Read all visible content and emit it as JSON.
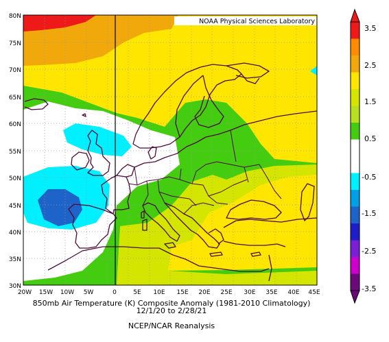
{
  "map": {
    "attribution": "NOAA Physical Sciences Laboratory",
    "lat_labels": [
      "80N",
      "75N",
      "70N",
      "65N",
      "60N",
      "55N",
      "50N",
      "45N",
      "40N",
      "35N",
      "30N"
    ],
    "lon_labels": [
      "20W",
      "15W",
      "10W",
      "5W",
      "0",
      "5E",
      "10E",
      "15E",
      "20E",
      "25E",
      "30E",
      "35E",
      "40E",
      "45E"
    ],
    "colors": {
      "coast": "#4a0a3a",
      "grid": "#9a9a9a",
      "greenwich": "#000000"
    }
  },
  "legend": {
    "labels": [
      "3.5",
      "2.5",
      "1.5",
      "0.5",
      "-0.5",
      "-1.5",
      "-2.5",
      "-3.5"
    ],
    "bins": [
      {
        "color": "#ee1a1a"
      },
      {
        "color": "#ff8c00"
      },
      {
        "color": "#f0a80a"
      },
      {
        "color": "#ffe600"
      },
      {
        "color": "#d4e600"
      },
      {
        "color": "#b8e020"
      },
      {
        "color": "#44cc10"
      },
      {
        "color": "#ffffff"
      },
      {
        "color": "#ffffff"
      },
      {
        "color": "#00f0ff"
      },
      {
        "color": "#00a0e8"
      },
      {
        "color": "#1e64c8"
      },
      {
        "color": "#1e1ec8"
      },
      {
        "color": "#7b1fd6"
      },
      {
        "color": "#cc00cc"
      },
      {
        "color": "#6a0a7a"
      }
    ]
  },
  "captions": {
    "line1": "850mb Air Temperature (K) Composite Anomaly (1981-2010 Climatology)",
    "line2": "12/1/20  to 2/28/21",
    "line3": "NCEP/NCAR Reanalysis"
  }
}
